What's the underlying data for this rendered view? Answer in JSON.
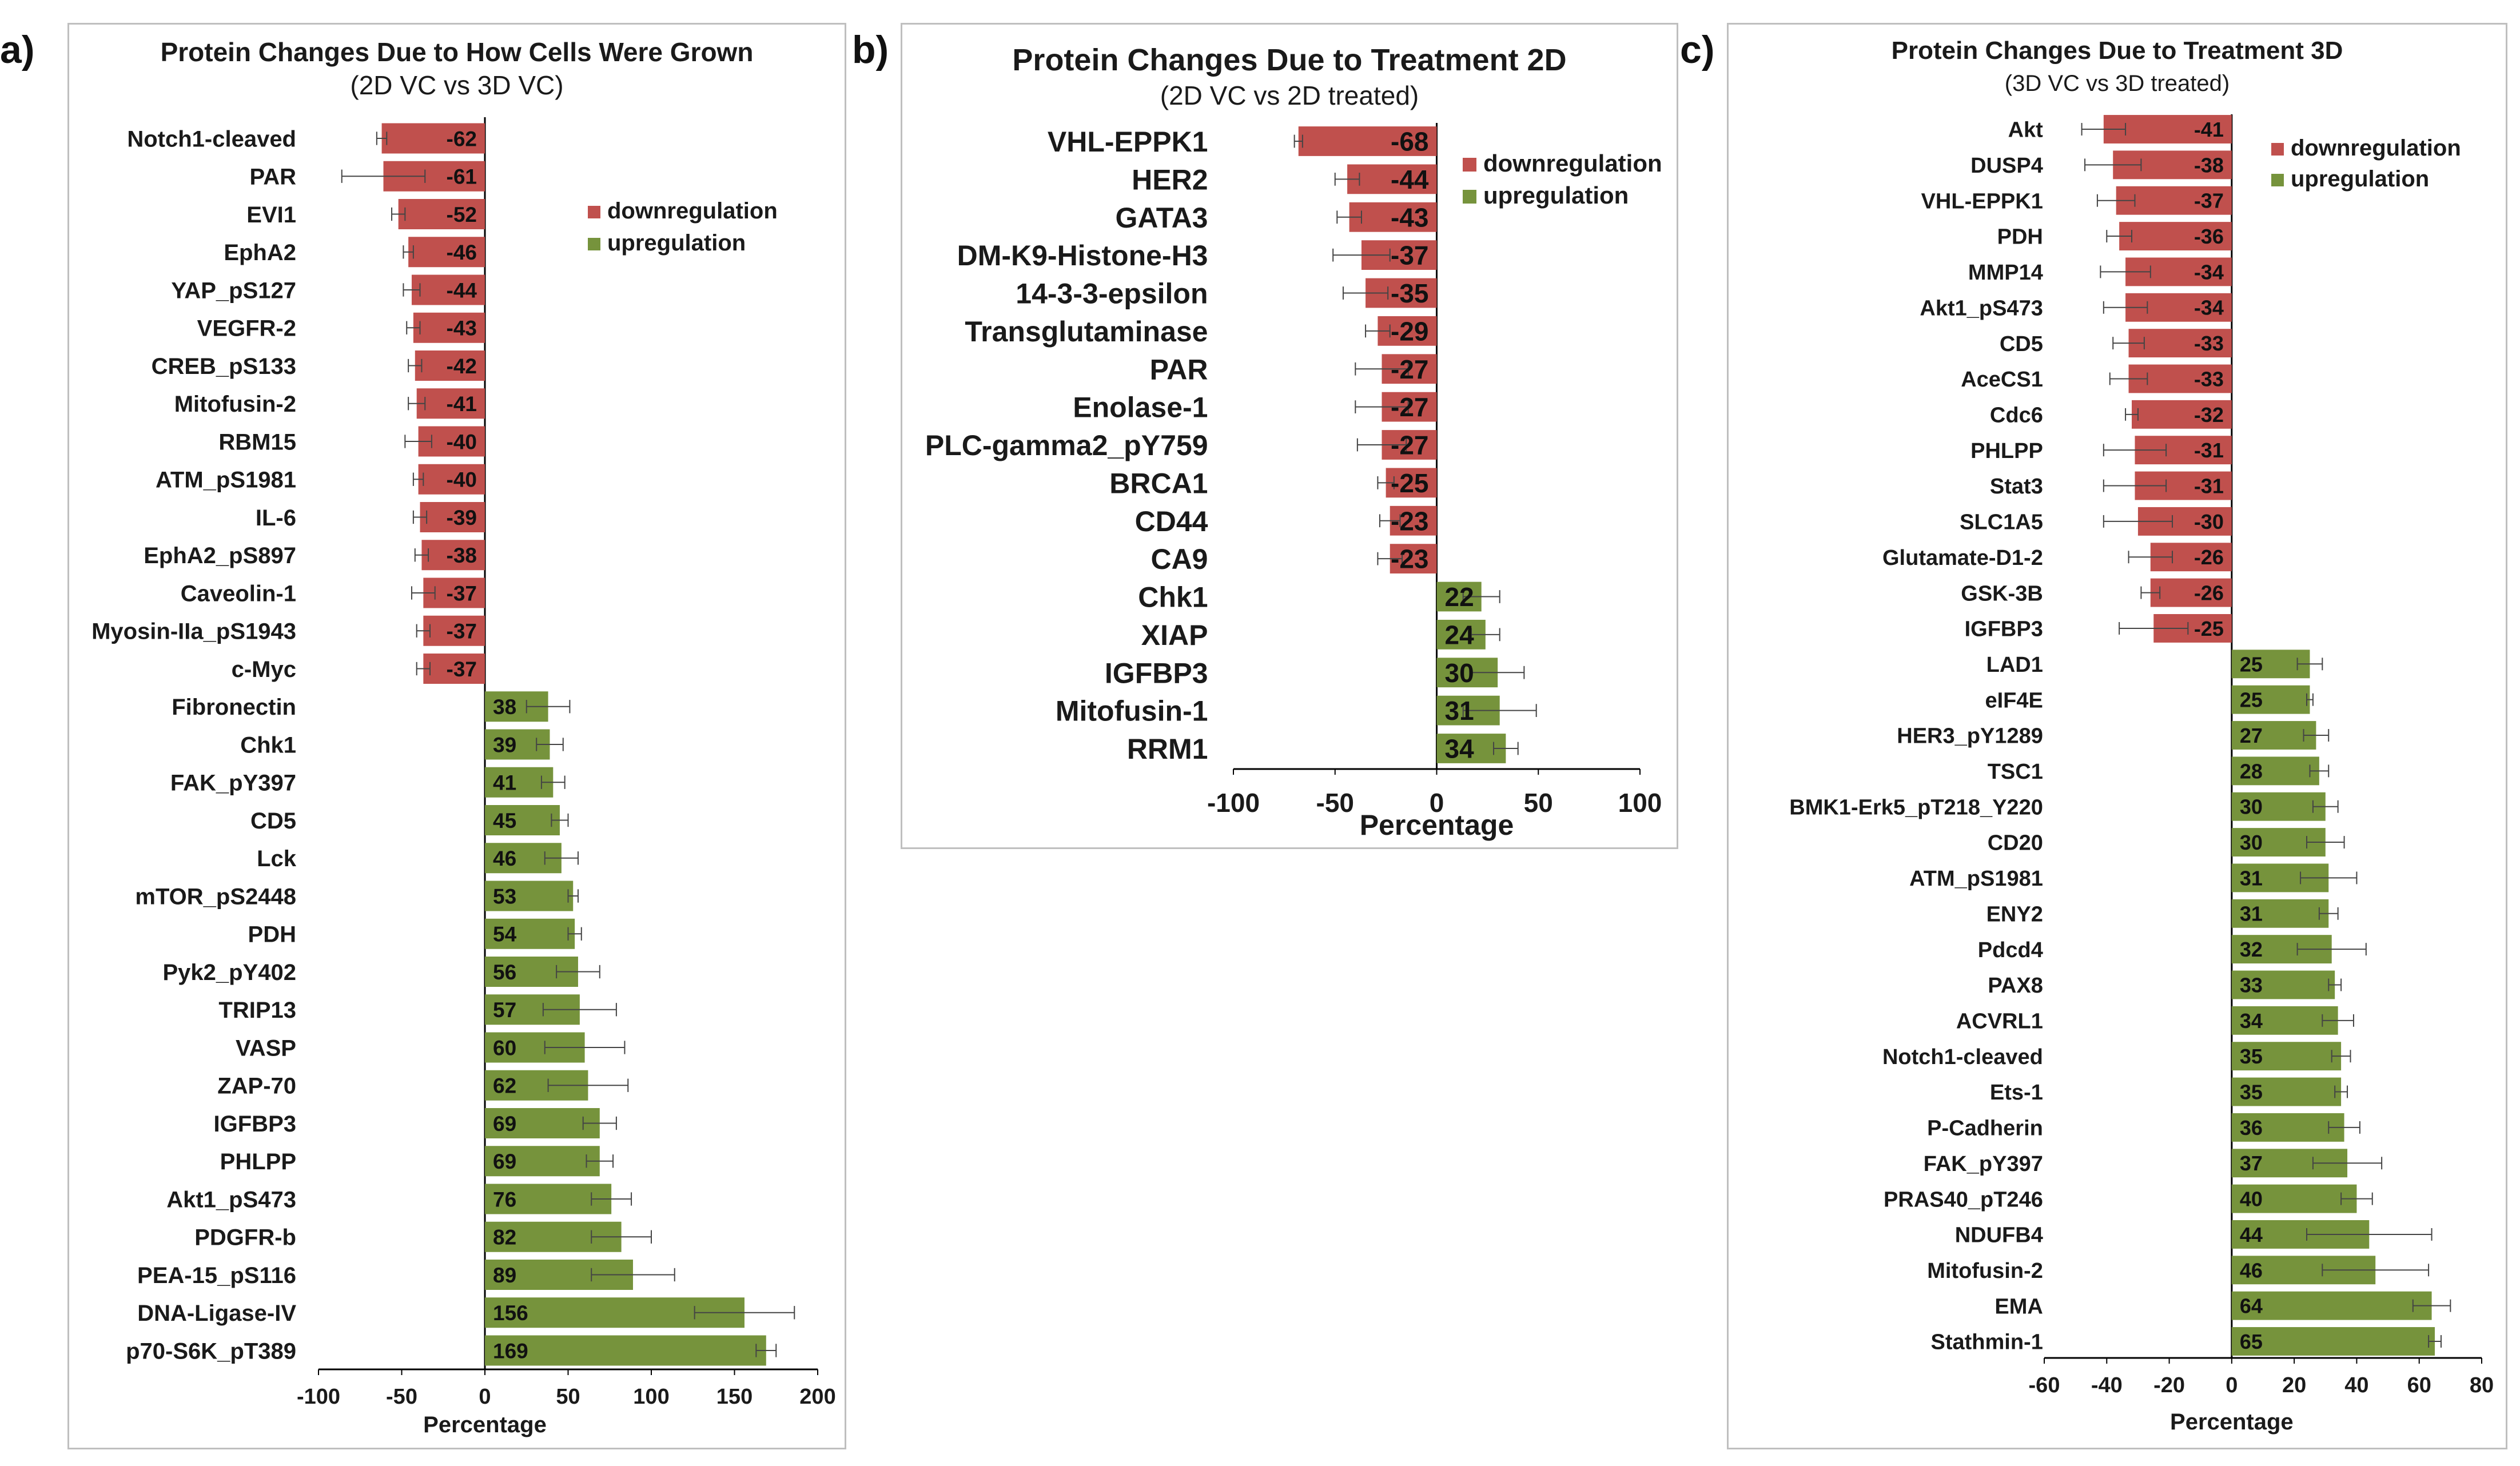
{
  "figure": {
    "downregulation_color": "#c0504d",
    "upregulation_color": "#76933c"
  },
  "chart_data": [
    {
      "panel_label": "a)",
      "type": "bar",
      "orientation": "horizontal",
      "title": "Protein Changes Due to How Cells Were Grown",
      "subtitle": "(2D VC vs 3D VC)",
      "xlabel": "Percentage",
      "xlim": [
        -100,
        200
      ],
      "xticks": [
        -100,
        -50,
        0,
        50,
        100,
        150,
        200
      ],
      "legend": [
        "downregulation",
        "upregulation"
      ],
      "legend_position": "top-right",
      "categories": [
        "Notch1-cleaved",
        "PAR",
        "EVI1",
        "EphA2",
        "YAP_pS127",
        "VEGFR-2",
        "CREB_pS133",
        "Mitofusin-2",
        "RBM15",
        "ATM_pS1981",
        "IL-6",
        "EphA2_pS897",
        "Caveolin-1",
        "Myosin-IIa_pS1943",
        "c-Myc",
        "Fibronectin",
        "Chk1",
        "FAK_pY397",
        "CD5",
        "Lck",
        "mTOR_pS2448",
        "PDH",
        "Pyk2_pY402",
        "TRIP13",
        "VASP",
        "ZAP-70",
        "IGFBP3",
        "PHLPP",
        "Akt1_pS473",
        "PDGFR-b",
        "PEA-15_pS116",
        "DNA-Ligase-IV",
        "p70-S6K_pT389"
      ],
      "values": [
        -62,
        -61,
        -52,
        -46,
        -44,
        -43,
        -42,
        -41,
        -40,
        -40,
        -39,
        -38,
        -37,
        -37,
        -37,
        38,
        39,
        41,
        45,
        46,
        53,
        54,
        56,
        57,
        60,
        62,
        69,
        69,
        76,
        82,
        89,
        156,
        169
      ],
      "errors": [
        3,
        25,
        4,
        3,
        5,
        4,
        4,
        5,
        8,
        3,
        4,
        4,
        7,
        4,
        4,
        13,
        8,
        7,
        5,
        10,
        3,
        4,
        13,
        22,
        24,
        24,
        10,
        8,
        12,
        18,
        25,
        30,
        6
      ]
    },
    {
      "panel_label": "b)",
      "type": "bar",
      "orientation": "horizontal",
      "title": "Protein Changes Due to Treatment 2D",
      "subtitle": "(2D VC vs 2D treated)",
      "xlabel": "Percentage",
      "xlim": [
        -100,
        100
      ],
      "xticks": [
        -100,
        -50,
        0,
        50,
        100
      ],
      "legend": [
        "downregulation",
        "upregulation"
      ],
      "legend_position": "top-right",
      "categories": [
        "VHL-EPPK1",
        "HER2",
        "GATA3",
        "DM-K9-Histone-H3",
        "14-3-3-epsilon",
        "Transglutaminase",
        "PAR",
        "Enolase-1",
        "PLC-gamma2_pY759",
        "BRCA1",
        "CD44",
        "CA9",
        "Chk1",
        "XIAP",
        "IGFBP3",
        "Mitofusin-1",
        "RRM1"
      ],
      "values": [
        -68,
        -44,
        -43,
        -37,
        -35,
        -29,
        -27,
        -27,
        -27,
        -25,
        -23,
        -23,
        22,
        24,
        30,
        31,
        34
      ],
      "errors": [
        2,
        6,
        6,
        14,
        11,
        6,
        13,
        13,
        12,
        4,
        5,
        6,
        9,
        7,
        13,
        18,
        6
      ]
    },
    {
      "panel_label": "c)",
      "type": "bar",
      "orientation": "horizontal",
      "title": "Protein Changes Due to Treatment 3D",
      "subtitle": "(3D VC vs 3D treated)",
      "xlabel": "Percentage",
      "xlim": [
        -60,
        80
      ],
      "xticks": [
        -60,
        -40,
        -20,
        0,
        20,
        40,
        60,
        80
      ],
      "legend": [
        "downregulation",
        "upregulation"
      ],
      "legend_position": "top-right",
      "categories": [
        "Akt",
        "DUSP4",
        "VHL-EPPK1",
        "PDH",
        "MMP14",
        "Akt1_pS473",
        "CD5",
        "AceCS1",
        "Cdc6",
        "PHLPP",
        "Stat3",
        "SLC1A5",
        "Glutamate-D1-2",
        "GSK-3B",
        "IGFBP3",
        "LAD1",
        "eIF4E",
        "HER3_pY1289",
        "TSC1",
        "BMK1-Erk5_pT218_Y220",
        "CD20",
        "ATM_pS1981",
        "ENY2",
        "Pdcd4",
        "PAX8",
        "ACVRL1",
        "Notch1-cleaved",
        "Ets-1",
        "P-Cadherin",
        "FAK_pY397",
        "PRAS40_pT246",
        "NDUFB4",
        "Mitofusin-2",
        "EMA",
        "Stathmin-1"
      ],
      "values": [
        -41,
        -38,
        -37,
        -36,
        -34,
        -34,
        -33,
        -33,
        -32,
        -31,
        -31,
        -30,
        -26,
        -26,
        -25,
        25,
        25,
        27,
        28,
        30,
        30,
        31,
        31,
        32,
        33,
        34,
        35,
        35,
        36,
        37,
        40,
        44,
        46,
        64,
        65
      ],
      "errors": [
        7,
        9,
        6,
        4,
        8,
        7,
        5,
        6,
        2,
        10,
        10,
        11,
        7,
        3,
        11,
        4,
        1,
        4,
        3,
        4,
        6,
        9,
        3,
        11,
        2,
        5,
        3,
        2,
        5,
        11,
        5,
        20,
        17,
        6,
        2
      ]
    }
  ]
}
